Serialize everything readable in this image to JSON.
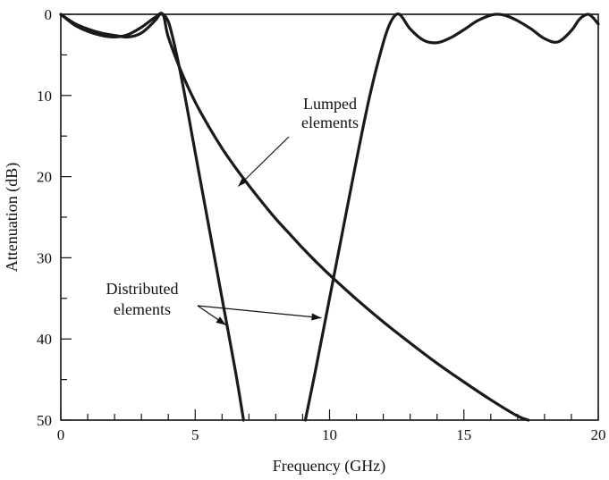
{
  "chart_data": {
    "type": "line",
    "title": "",
    "xlabel": "Frequency (GHz)",
    "ylabel": "Attenuation (dB)",
    "xlim": [
      0,
      20
    ],
    "ylim": [
      0,
      50
    ],
    "y_inverted": true,
    "grid": false,
    "x_ticks": [
      "0",
      "5",
      "10",
      "15",
      "20"
    ],
    "y_ticks": [
      "0",
      "10",
      "20",
      "30",
      "40",
      "50"
    ],
    "series": [
      {
        "name": "Lumped elements",
        "x": [
          0,
          0.5,
          1,
          1.5,
          2,
          2.5,
          3,
          3.5,
          3.8,
          4.0,
          4.5,
          5,
          5.5,
          6,
          6.5,
          7,
          7.5,
          8,
          8.5,
          9,
          9.5,
          10,
          11,
          12,
          13,
          14,
          15,
          16,
          17,
          17.4
        ],
        "y": [
          0,
          1.3,
          2.1,
          2.6,
          2.8,
          2.5,
          1.6,
          0.4,
          0,
          2.8,
          7.2,
          10.8,
          13.8,
          16.5,
          18.9,
          21.1,
          23.2,
          25.2,
          27.0,
          28.8,
          30.5,
          32.1,
          35.1,
          37.9,
          40.5,
          43.0,
          45.3,
          47.5,
          49.5,
          50
        ]
      },
      {
        "name": "Distributed elements",
        "x": [
          0,
          0.5,
          1,
          1.5,
          2,
          2.5,
          3,
          3.5,
          3.7,
          3.9,
          4.1,
          4.5,
          5,
          5.5,
          6,
          6.5,
          6.8
        ],
        "y": [
          0,
          1.1,
          1.8,
          2.3,
          2.6,
          2.8,
          2.3,
          0.8,
          0,
          0.3,
          2.0,
          8.0,
          17.0,
          26.0,
          35.0,
          44.0,
          50
        ]
      },
      {
        "name": "Distributed elements",
        "x": [
          9.1,
          9.5,
          10,
          10.5,
          11,
          11.5,
          12,
          12.3,
          12.6,
          13,
          13.5,
          14,
          14.5,
          15,
          15.5,
          16,
          16.3,
          16.6,
          17,
          17.5,
          18,
          18.5,
          19,
          19.3,
          19.6,
          19.8,
          20
        ],
        "y": [
          50,
          43.5,
          35.0,
          26.5,
          18.0,
          10.0,
          3.5,
          0.8,
          0,
          1.8,
          3.2,
          3.5,
          2.9,
          1.9,
          0.8,
          0.1,
          0,
          0.2,
          0.8,
          1.8,
          3.0,
          3.4,
          2.0,
          0.6,
          0,
          0.4,
          1.2
        ]
      }
    ],
    "annotations": [
      {
        "text": "Lumped",
        "line2": "elements",
        "x": 10.0,
        "y": 13.1,
        "arrow_to": [
          6.6,
          21.2
        ]
      },
      {
        "text": "Distributed",
        "line2": "elements",
        "x": 2.6,
        "y": 35.3,
        "arrow_to_1": [
          6.15,
          38.3
        ],
        "arrow_to_2": [
          9.7,
          37.4
        ]
      }
    ]
  }
}
